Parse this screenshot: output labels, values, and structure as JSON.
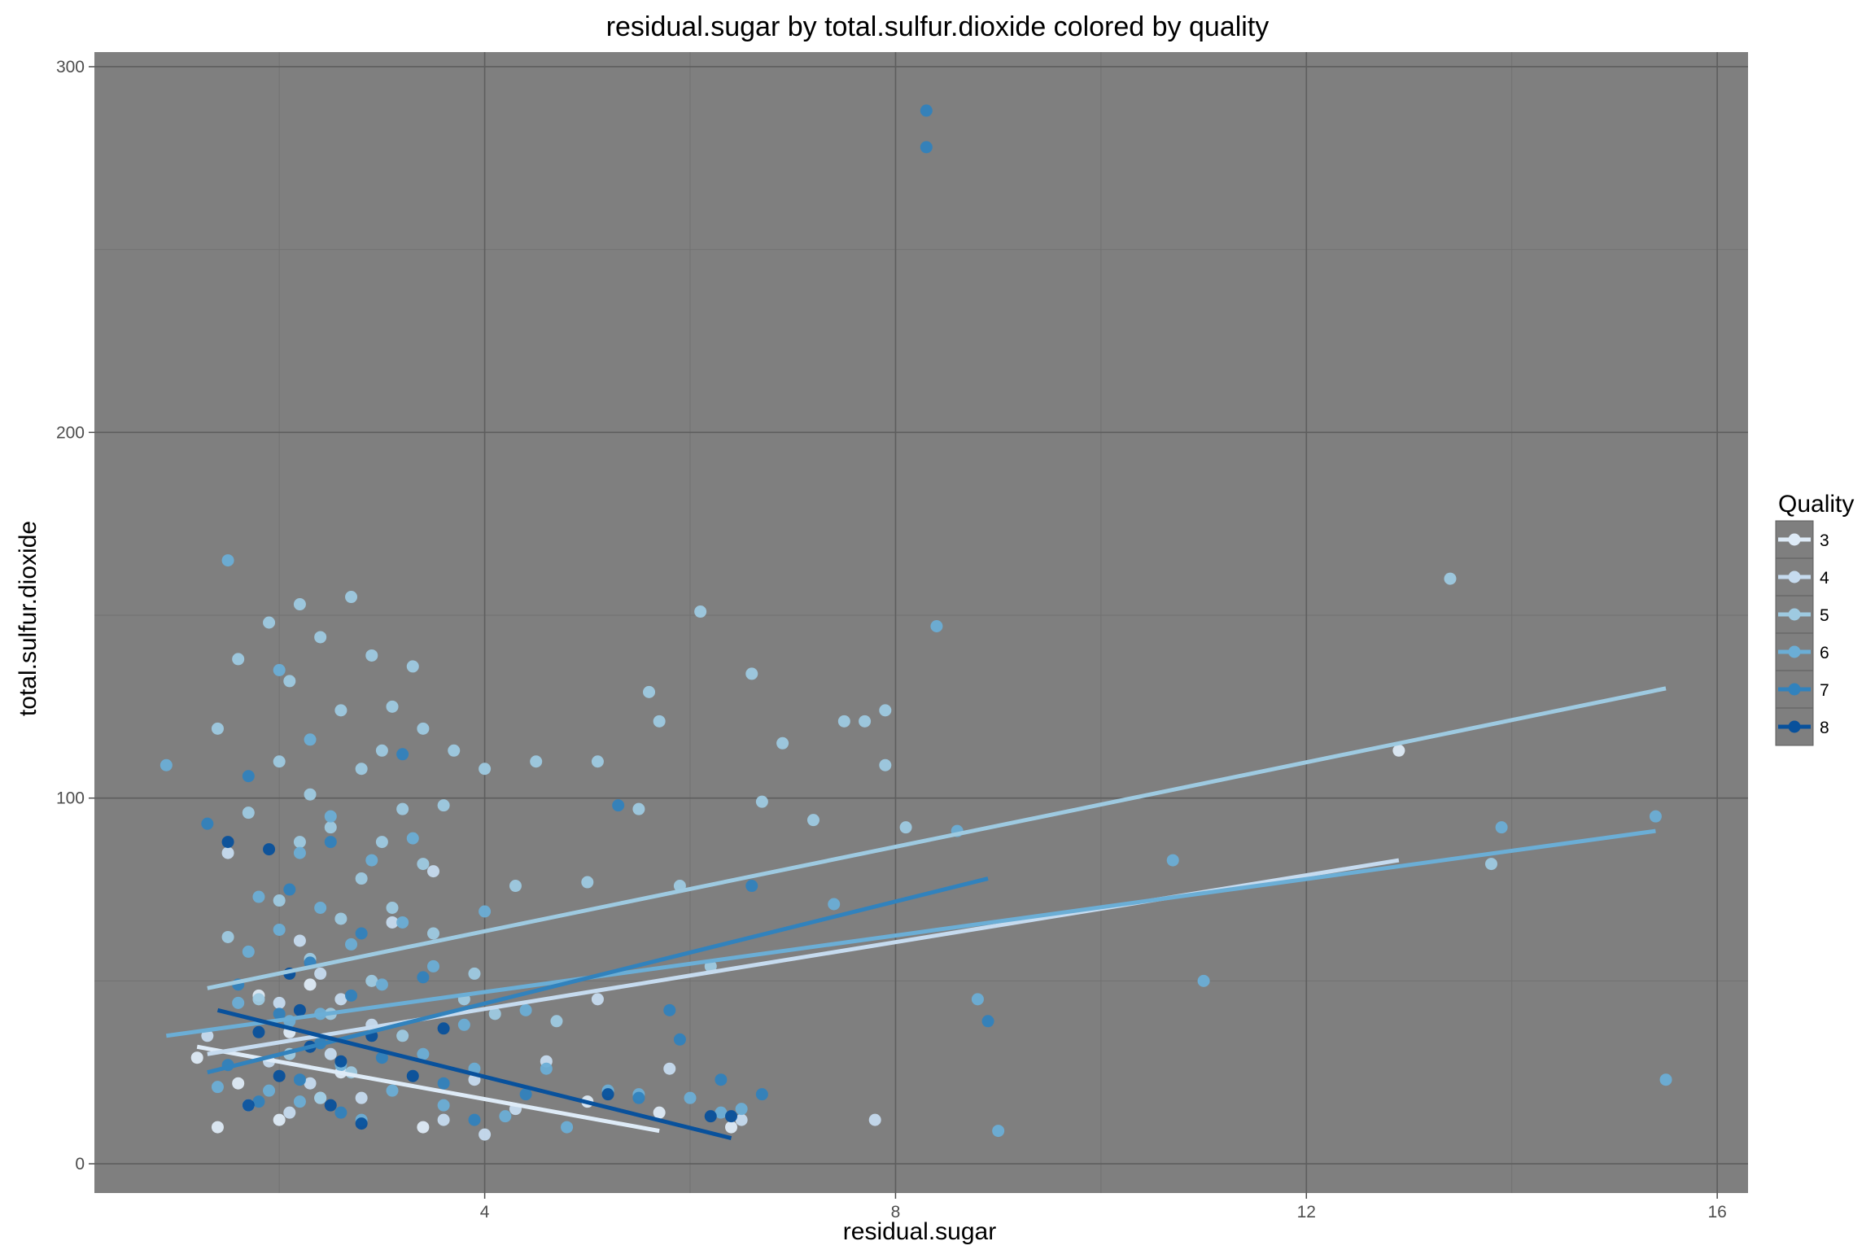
{
  "chart_data": {
    "type": "scatter",
    "title": "residual.sugar by total.sulfur.dioxide colored by quality",
    "xlabel": "residual.sugar",
    "ylabel": "total.sulfur.dioxide",
    "xlim": [
      0.2,
      16.3
    ],
    "ylim": [
      -8,
      304
    ],
    "x_ticks": [
      4,
      8,
      12,
      16
    ],
    "y_ticks": [
      0,
      100,
      200,
      300
    ],
    "x_tick_labels": [
      "4",
      "8",
      "12",
      "16"
    ],
    "y_tick_labels": [
      "0",
      "100",
      "200",
      "300"
    ],
    "grid": true,
    "panel_background": "#7f7f7f",
    "legend": {
      "title": "Quality",
      "position": "right"
    },
    "series": [
      {
        "name": "3",
        "color": "#deebf7",
        "points": [
          [
            1.2,
            29
          ],
          [
            1.4,
            10
          ],
          [
            1.6,
            22
          ],
          [
            1.8,
            46
          ],
          [
            2.0,
            12
          ],
          [
            2.1,
            36
          ],
          [
            2.3,
            49
          ],
          [
            2.4,
            18
          ],
          [
            2.6,
            25
          ],
          [
            3.4,
            10
          ],
          [
            5.0,
            17
          ],
          [
            5.7,
            14
          ],
          [
            6.4,
            10
          ],
          [
            12.9,
            113
          ]
        ],
        "fit": [
          [
            1.2,
            32
          ],
          [
            5.7,
            9
          ]
        ]
      },
      {
        "name": "4",
        "color": "#c6dbef",
        "points": [
          [
            1.3,
            35
          ],
          [
            1.5,
            85
          ],
          [
            1.7,
            16
          ],
          [
            1.9,
            28
          ],
          [
            2.0,
            44
          ],
          [
            2.1,
            14
          ],
          [
            2.2,
            61
          ],
          [
            2.3,
            22
          ],
          [
            2.4,
            52
          ],
          [
            2.5,
            30
          ],
          [
            2.6,
            45
          ],
          [
            2.8,
            18
          ],
          [
            2.9,
            38
          ],
          [
            3.1,
            66
          ],
          [
            3.5,
            80
          ],
          [
            3.6,
            12
          ],
          [
            3.9,
            23
          ],
          [
            4.0,
            8
          ],
          [
            4.3,
            15
          ],
          [
            4.6,
            28
          ],
          [
            5.1,
            45
          ],
          [
            5.8,
            26
          ],
          [
            6.5,
            12
          ],
          [
            7.8,
            12
          ]
        ],
        "fit": [
          [
            1.3,
            30
          ],
          [
            12.9,
            83
          ]
        ]
      },
      {
        "name": "5",
        "color": "#9ecae1",
        "points": [
          [
            1.4,
            119
          ],
          [
            1.5,
            62
          ],
          [
            1.6,
            138
          ],
          [
            1.7,
            96
          ],
          [
            1.8,
            45
          ],
          [
            1.9,
            148
          ],
          [
            2.0,
            110
          ],
          [
            2.0,
            72
          ],
          [
            2.1,
            132
          ],
          [
            2.1,
            30
          ],
          [
            2.2,
            88
          ],
          [
            2.2,
            153
          ],
          [
            2.3,
            101
          ],
          [
            2.3,
            56
          ],
          [
            2.4,
            144
          ],
          [
            2.4,
            18
          ],
          [
            2.5,
            92
          ],
          [
            2.5,
            41
          ],
          [
            2.6,
            124
          ],
          [
            2.6,
            67
          ],
          [
            2.7,
            155
          ],
          [
            2.7,
            25
          ],
          [
            2.8,
            108
          ],
          [
            2.8,
            78
          ],
          [
            2.9,
            139
          ],
          [
            2.9,
            50
          ],
          [
            3.0,
            113
          ],
          [
            3.0,
            88
          ],
          [
            3.1,
            70
          ],
          [
            3.1,
            125
          ],
          [
            3.2,
            97
          ],
          [
            3.2,
            35
          ],
          [
            3.3,
            136
          ],
          [
            3.4,
            82
          ],
          [
            3.4,
            119
          ],
          [
            3.5,
            63
          ],
          [
            3.6,
            98
          ],
          [
            3.7,
            113
          ],
          [
            3.8,
            45
          ],
          [
            3.9,
            52
          ],
          [
            4.0,
            108
          ],
          [
            4.1,
            41
          ],
          [
            4.3,
            76
          ],
          [
            4.5,
            110
          ],
          [
            4.7,
            39
          ],
          [
            5.0,
            77
          ],
          [
            5.1,
            110
          ],
          [
            5.5,
            97
          ],
          [
            5.6,
            129
          ],
          [
            5.7,
            121
          ],
          [
            5.9,
            76
          ],
          [
            6.1,
            151
          ],
          [
            6.2,
            54
          ],
          [
            6.6,
            134
          ],
          [
            6.7,
            99
          ],
          [
            6.9,
            115
          ],
          [
            7.2,
            94
          ],
          [
            7.5,
            121
          ],
          [
            7.7,
            121
          ],
          [
            8.1,
            92
          ],
          [
            7.9,
            109
          ],
          [
            7.9,
            124
          ],
          [
            13.4,
            160
          ],
          [
            13.8,
            82
          ]
        ],
        "fit": [
          [
            1.3,
            48
          ],
          [
            15.5,
            130
          ]
        ]
      },
      {
        "name": "6",
        "color": "#6baed6",
        "points": [
          [
            0.9,
            109
          ],
          [
            1.4,
            21
          ],
          [
            1.5,
            165
          ],
          [
            1.6,
            44
          ],
          [
            1.7,
            58
          ],
          [
            1.8,
            73
          ],
          [
            1.9,
            20
          ],
          [
            2.0,
            135
          ],
          [
            2.0,
            64
          ],
          [
            2.1,
            39
          ],
          [
            2.2,
            85
          ],
          [
            2.2,
            17
          ],
          [
            2.3,
            116
          ],
          [
            2.4,
            41
          ],
          [
            2.4,
            70
          ],
          [
            2.5,
            95
          ],
          [
            2.6,
            27
          ],
          [
            2.7,
            60
          ],
          [
            2.8,
            12
          ],
          [
            2.9,
            83
          ],
          [
            3.0,
            49
          ],
          [
            3.1,
            20
          ],
          [
            3.2,
            66
          ],
          [
            3.3,
            89
          ],
          [
            3.4,
            30
          ],
          [
            3.5,
            54
          ],
          [
            3.6,
            16
          ],
          [
            3.8,
            38
          ],
          [
            3.9,
            26
          ],
          [
            4.0,
            69
          ],
          [
            4.2,
            13
          ],
          [
            4.4,
            42
          ],
          [
            4.6,
            26
          ],
          [
            4.8,
            10
          ],
          [
            5.2,
            20
          ],
          [
            5.5,
            19
          ],
          [
            6.0,
            18
          ],
          [
            6.3,
            14
          ],
          [
            6.5,
            15
          ],
          [
            7.4,
            71
          ],
          [
            8.4,
            147
          ],
          [
            8.6,
            91
          ],
          [
            8.8,
            45
          ],
          [
            9.0,
            9
          ],
          [
            10.7,
            83
          ],
          [
            11.0,
            50
          ],
          [
            13.9,
            92
          ],
          [
            15.4,
            95
          ],
          [
            15.5,
            23
          ]
        ],
        "fit": [
          [
            0.9,
            35
          ],
          [
            15.4,
            91
          ]
        ]
      },
      {
        "name": "7",
        "color": "#3182bd",
        "points": [
          [
            1.3,
            93
          ],
          [
            1.5,
            27
          ],
          [
            1.6,
            49
          ],
          [
            1.7,
            106
          ],
          [
            1.8,
            17
          ],
          [
            2.0,
            41
          ],
          [
            2.1,
            75
          ],
          [
            2.2,
            23
          ],
          [
            2.3,
            55
          ],
          [
            2.4,
            33
          ],
          [
            2.5,
            88
          ],
          [
            2.6,
            14
          ],
          [
            2.7,
            46
          ],
          [
            2.8,
            63
          ],
          [
            3.0,
            29
          ],
          [
            3.2,
            112
          ],
          [
            3.4,
            51
          ],
          [
            3.6,
            22
          ],
          [
            3.9,
            12
          ],
          [
            4.4,
            19
          ],
          [
            5.3,
            98
          ],
          [
            5.5,
            18
          ],
          [
            5.8,
            42
          ],
          [
            5.9,
            34
          ],
          [
            6.3,
            23
          ],
          [
            6.6,
            76
          ],
          [
            6.7,
            19
          ],
          [
            8.3,
            288
          ],
          [
            8.3,
            278
          ],
          [
            8.9,
            39
          ]
        ],
        "fit": [
          [
            1.3,
            25
          ],
          [
            8.9,
            78
          ]
        ]
      },
      {
        "name": "8",
        "color": "#08519c",
        "points": [
          [
            1.5,
            88
          ],
          [
            1.7,
            16
          ],
          [
            1.8,
            36
          ],
          [
            1.9,
            86
          ],
          [
            2.0,
            24
          ],
          [
            2.1,
            52
          ],
          [
            2.2,
            42
          ],
          [
            2.3,
            32
          ],
          [
            2.5,
            16
          ],
          [
            2.6,
            28
          ],
          [
            2.8,
            11
          ],
          [
            2.9,
            35
          ],
          [
            3.3,
            24
          ],
          [
            3.6,
            37
          ],
          [
            5.2,
            19
          ],
          [
            6.2,
            13
          ],
          [
            6.4,
            13
          ]
        ],
        "fit": [
          [
            1.4,
            42
          ],
          [
            6.4,
            7
          ]
        ]
      }
    ]
  }
}
